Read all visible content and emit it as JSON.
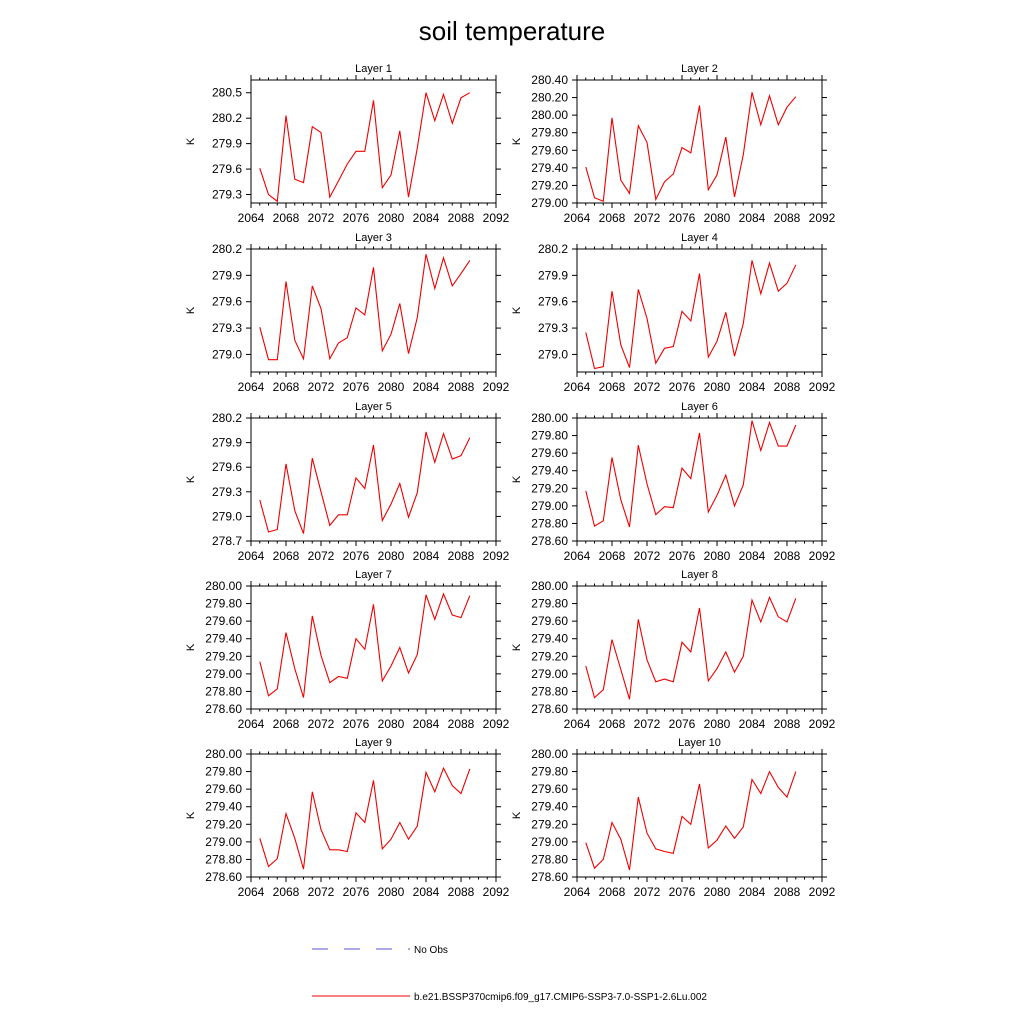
{
  "title": "soil temperature",
  "colors": {
    "model": "#ee0000",
    "obs": "#5555cc",
    "axis": "#000000"
  },
  "legend": {
    "obs_label": "No Obs",
    "model_label": "b.e21.BSSP370cmip6.f09_g17.CMIP6-SSP3-7.0-SSP1-2.6Lu.002"
  },
  "chart_data": [
    {
      "type": "line",
      "title": "Layer 1",
      "ylabel": "K",
      "xlim": [
        2064,
        2092
      ],
      "ylim": [
        279.2,
        280.65
      ],
      "xticks": [
        "2064",
        "2068",
        "2072",
        "2076",
        "2080",
        "2084",
        "2088",
        "2092"
      ],
      "yticks": [
        "279.3",
        "279.6",
        "279.9",
        "280.2",
        "280.5"
      ],
      "x": [
        2065,
        2066,
        2067,
        2068,
        2069,
        2070,
        2071,
        2072,
        2073,
        2074,
        2075,
        2076,
        2077,
        2078,
        2079,
        2080,
        2081,
        2082,
        2083,
        2084,
        2085,
        2086,
        2087,
        2088,
        2089
      ],
      "series": [
        {
          "name": "b.e21.BSSP370cmip6.f09_g17.CMIP6-SSP3-7.0-SSP1-2.6Lu.002",
          "values": [
            279.61,
            279.3,
            279.22,
            280.23,
            279.48,
            279.44,
            280.1,
            280.03,
            279.27,
            279.46,
            279.66,
            279.81,
            279.81,
            280.41,
            279.38,
            279.53,
            280.05,
            279.27,
            279.85,
            280.5,
            280.17,
            280.48,
            280.14,
            280.44,
            280.5
          ]
        }
      ]
    },
    {
      "type": "line",
      "title": "Layer 2",
      "ylabel": "K",
      "xlim": [
        2064,
        2092
      ],
      "ylim": [
        279.0,
        280.4
      ],
      "xticks": [
        "2064",
        "2068",
        "2072",
        "2076",
        "2080",
        "2084",
        "2088",
        "2092"
      ],
      "yticks": [
        "279.00",
        "279.20",
        "279.40",
        "279.60",
        "279.80",
        "280.00",
        "280.20",
        "280.40"
      ],
      "x": [
        2065,
        2066,
        2067,
        2068,
        2069,
        2070,
        2071,
        2072,
        2073,
        2074,
        2075,
        2076,
        2077,
        2078,
        2079,
        2080,
        2081,
        2082,
        2083,
        2084,
        2085,
        2086,
        2087,
        2088,
        2089
      ],
      "series": [
        {
          "name": "b.e21.BSSP370cmip6.f09_g17.CMIP6-SSP3-7.0-SSP1-2.6Lu.002",
          "values": [
            279.41,
            279.06,
            279.02,
            279.97,
            279.26,
            279.11,
            279.88,
            279.69,
            279.04,
            279.24,
            279.33,
            279.63,
            279.57,
            280.11,
            279.15,
            279.32,
            279.75,
            279.07,
            279.55,
            280.26,
            279.89,
            280.22,
            279.89,
            280.09,
            280.21
          ]
        }
      ]
    },
    {
      "type": "line",
      "title": "Layer 3",
      "ylabel": "K",
      "xlim": [
        2064,
        2092
      ],
      "ylim": [
        278.8,
        280.2
      ],
      "xticks": [
        "2064",
        "2068",
        "2072",
        "2076",
        "2080",
        "2084",
        "2088",
        "2092"
      ],
      "yticks": [
        "279.0",
        "279.3",
        "279.6",
        "279.9",
        "280.2"
      ],
      "x": [
        2065,
        2066,
        2067,
        2068,
        2069,
        2070,
        2071,
        2072,
        2073,
        2074,
        2075,
        2076,
        2077,
        2078,
        2079,
        2080,
        2081,
        2082,
        2083,
        2084,
        2085,
        2086,
        2087,
        2088,
        2089
      ],
      "series": [
        {
          "name": "b.e21.BSSP370cmip6.f09_g17.CMIP6-SSP3-7.0-SSP1-2.6Lu.002",
          "values": [
            279.31,
            278.94,
            278.94,
            279.83,
            279.16,
            278.95,
            279.78,
            279.52,
            278.95,
            279.13,
            279.19,
            279.53,
            279.45,
            279.99,
            279.04,
            279.23,
            279.58,
            279.01,
            279.42,
            280.14,
            279.75,
            280.1,
            279.78,
            279.92,
            280.07
          ]
        }
      ]
    },
    {
      "type": "line",
      "title": "Layer 4",
      "ylabel": "K",
      "xlim": [
        2064,
        2092
      ],
      "ylim": [
        278.8,
        280.2
      ],
      "xticks": [
        "2064",
        "2068",
        "2072",
        "2076",
        "2080",
        "2084",
        "2088",
        "2092"
      ],
      "yticks": [
        "279.0",
        "279.3",
        "279.6",
        "279.9",
        "280.2"
      ],
      "x": [
        2065,
        2066,
        2067,
        2068,
        2069,
        2070,
        2071,
        2072,
        2073,
        2074,
        2075,
        2076,
        2077,
        2078,
        2079,
        2080,
        2081,
        2082,
        2083,
        2084,
        2085,
        2086,
        2087,
        2088,
        2089
      ],
      "series": [
        {
          "name": "b.e21.BSSP370cmip6.f09_g17.CMIP6-SSP3-7.0-SSP1-2.6Lu.002",
          "values": [
            279.25,
            278.84,
            278.86,
            279.72,
            279.11,
            278.85,
            279.74,
            279.41,
            278.9,
            279.07,
            279.09,
            279.49,
            279.38,
            279.92,
            278.97,
            279.15,
            279.48,
            278.98,
            279.35,
            280.07,
            279.69,
            280.04,
            279.72,
            279.81,
            280.02
          ]
        }
      ]
    },
    {
      "type": "line",
      "title": "Layer 5",
      "ylabel": "K",
      "xlim": [
        2064,
        2092
      ],
      "ylim": [
        278.7,
        280.2
      ],
      "xticks": [
        "2064",
        "2068",
        "2072",
        "2076",
        "2080",
        "2084",
        "2088",
        "2092"
      ],
      "yticks": [
        "278.7",
        "279.0",
        "279.3",
        "279.6",
        "279.9",
        "280.2"
      ],
      "x": [
        2065,
        2066,
        2067,
        2068,
        2069,
        2070,
        2071,
        2072,
        2073,
        2074,
        2075,
        2076,
        2077,
        2078,
        2079,
        2080,
        2081,
        2082,
        2083,
        2084,
        2085,
        2086,
        2087,
        2088,
        2089
      ],
      "series": [
        {
          "name": "b.e21.BSSP370cmip6.f09_g17.CMIP6-SSP3-7.0-SSP1-2.6Lu.002",
          "values": [
            279.2,
            278.81,
            278.84,
            279.64,
            279.07,
            278.79,
            279.71,
            279.3,
            278.89,
            279.02,
            279.02,
            279.47,
            279.34,
            279.87,
            278.95,
            279.15,
            279.4,
            278.99,
            279.29,
            280.03,
            279.66,
            280.01,
            279.7,
            279.74,
            279.96
          ]
        }
      ]
    },
    {
      "type": "line",
      "title": "Layer 6",
      "ylabel": "K",
      "xlim": [
        2064,
        2092
      ],
      "ylim": [
        278.6,
        280.0
      ],
      "xticks": [
        "2064",
        "2068",
        "2072",
        "2076",
        "2080",
        "2084",
        "2088",
        "2092"
      ],
      "yticks": [
        "278.60",
        "278.80",
        "279.00",
        "279.20",
        "279.40",
        "279.60",
        "279.80",
        "280.00"
      ],
      "x": [
        2065,
        2066,
        2067,
        2068,
        2069,
        2070,
        2071,
        2072,
        2073,
        2074,
        2075,
        2076,
        2077,
        2078,
        2079,
        2080,
        2081,
        2082,
        2083,
        2084,
        2085,
        2086,
        2087,
        2088,
        2089
      ],
      "series": [
        {
          "name": "b.e21.BSSP370cmip6.f09_g17.CMIP6-SSP3-7.0-SSP1-2.6Lu.002",
          "values": [
            279.17,
            278.77,
            278.83,
            279.55,
            279.07,
            278.76,
            279.69,
            279.25,
            278.9,
            278.99,
            278.98,
            279.43,
            279.31,
            279.83,
            278.93,
            279.12,
            279.35,
            279.0,
            279.24,
            279.97,
            279.63,
            279.95,
            279.68,
            279.68,
            279.92
          ]
        }
      ]
    },
    {
      "type": "line",
      "title": "Layer 7",
      "ylabel": "K",
      "xlim": [
        2064,
        2092
      ],
      "ylim": [
        278.6,
        280.0
      ],
      "xticks": [
        "2064",
        "2068",
        "2072",
        "2076",
        "2080",
        "2084",
        "2088",
        "2092"
      ],
      "yticks": [
        "278.60",
        "278.80",
        "279.00",
        "279.20",
        "279.40",
        "279.60",
        "279.80",
        "280.00"
      ],
      "x": [
        2065,
        2066,
        2067,
        2068,
        2069,
        2070,
        2071,
        2072,
        2073,
        2074,
        2075,
        2076,
        2077,
        2078,
        2079,
        2080,
        2081,
        2082,
        2083,
        2084,
        2085,
        2086,
        2087,
        2088,
        2089
      ],
      "series": [
        {
          "name": "b.e21.BSSP370cmip6.f09_g17.CMIP6-SSP3-7.0-SSP1-2.6Lu.002",
          "values": [
            279.14,
            278.75,
            278.83,
            279.47,
            279.06,
            278.73,
            279.66,
            279.21,
            278.9,
            278.97,
            278.95,
            279.4,
            279.28,
            279.79,
            278.92,
            279.09,
            279.3,
            279.01,
            279.22,
            279.9,
            279.62,
            279.91,
            279.67,
            279.64,
            279.89
          ]
        }
      ]
    },
    {
      "type": "line",
      "title": "Layer 8",
      "ylabel": "K",
      "xlim": [
        2064,
        2092
      ],
      "ylim": [
        278.6,
        280.0
      ],
      "xticks": [
        "2064",
        "2068",
        "2072",
        "2076",
        "2080",
        "2084",
        "2088",
        "2092"
      ],
      "yticks": [
        "278.60",
        "278.80",
        "279.00",
        "279.20",
        "279.40",
        "279.60",
        "279.80",
        "280.00"
      ],
      "x": [
        2065,
        2066,
        2067,
        2068,
        2069,
        2070,
        2071,
        2072,
        2073,
        2074,
        2075,
        2076,
        2077,
        2078,
        2079,
        2080,
        2081,
        2082,
        2083,
        2084,
        2085,
        2086,
        2087,
        2088,
        2089
      ],
      "series": [
        {
          "name": "b.e21.BSSP370cmip6.f09_g17.CMIP6-SSP3-7.0-SSP1-2.6Lu.002",
          "values": [
            279.09,
            278.73,
            278.82,
            279.39,
            279.05,
            278.71,
            279.62,
            279.16,
            278.91,
            278.94,
            278.91,
            279.36,
            279.25,
            279.75,
            278.92,
            279.06,
            279.25,
            279.02,
            279.2,
            279.84,
            279.59,
            279.87,
            279.65,
            279.59,
            279.86
          ]
        }
      ]
    },
    {
      "type": "line",
      "title": "Layer 9",
      "ylabel": "K",
      "xlim": [
        2064,
        2092
      ],
      "ylim": [
        278.6,
        280.0
      ],
      "xticks": [
        "2064",
        "2068",
        "2072",
        "2076",
        "2080",
        "2084",
        "2088",
        "2092"
      ],
      "yticks": [
        "278.60",
        "278.80",
        "279.00",
        "279.20",
        "279.40",
        "279.60",
        "279.80",
        "280.00"
      ],
      "x": [
        2065,
        2066,
        2067,
        2068,
        2069,
        2070,
        2071,
        2072,
        2073,
        2074,
        2075,
        2076,
        2077,
        2078,
        2079,
        2080,
        2081,
        2082,
        2083,
        2084,
        2085,
        2086,
        2087,
        2088,
        2089
      ],
      "series": [
        {
          "name": "b.e21.BSSP370cmip6.f09_g17.CMIP6-SSP3-7.0-SSP1-2.6Lu.002",
          "values": [
            279.04,
            278.72,
            278.81,
            279.32,
            279.04,
            278.69,
            279.57,
            279.14,
            278.91,
            278.91,
            278.89,
            279.33,
            279.22,
            279.7,
            278.92,
            279.03,
            279.22,
            279.03,
            279.18,
            279.79,
            279.57,
            279.84,
            279.64,
            279.55,
            279.83
          ]
        }
      ]
    },
    {
      "type": "line",
      "title": "Layer 10",
      "ylabel": "K",
      "xlim": [
        2064,
        2092
      ],
      "ylim": [
        278.6,
        280.0
      ],
      "xticks": [
        "2064",
        "2068",
        "2072",
        "2076",
        "2080",
        "2084",
        "2088",
        "2092"
      ],
      "yticks": [
        "278.60",
        "278.80",
        "279.00",
        "279.20",
        "279.40",
        "279.60",
        "279.80",
        "280.00"
      ],
      "x": [
        2065,
        2066,
        2067,
        2068,
        2069,
        2070,
        2071,
        2072,
        2073,
        2074,
        2075,
        2076,
        2077,
        2078,
        2079,
        2080,
        2081,
        2082,
        2083,
        2084,
        2085,
        2086,
        2087,
        2088,
        2089
      ],
      "series": [
        {
          "name": "b.e21.BSSP370cmip6.f09_g17.CMIP6-SSP3-7.0-SSP1-2.6Lu.002",
          "values": [
            278.99,
            278.7,
            278.8,
            279.22,
            279.03,
            278.68,
            279.51,
            279.1,
            278.92,
            278.89,
            278.87,
            279.29,
            279.2,
            279.66,
            278.93,
            279.02,
            279.18,
            279.04,
            279.17,
            279.71,
            279.55,
            279.8,
            279.62,
            279.51,
            279.8
          ]
        }
      ]
    }
  ]
}
